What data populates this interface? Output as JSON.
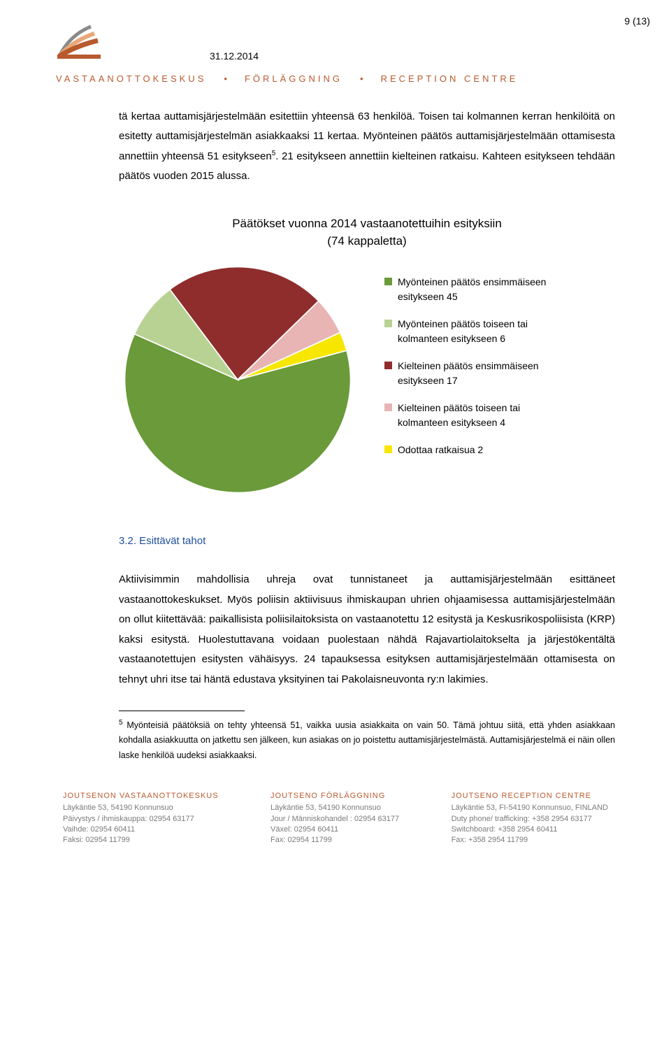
{
  "page_number": "9 (13)",
  "date": "31.12.2014",
  "org_bar": {
    "a": "VASTAANOTTOKESKUS",
    "b": "FÖRLÄGGNING",
    "c": "RECEPTION CENTRE"
  },
  "logo": {
    "colors": [
      "#b85a2e",
      "#e8a878",
      "#8a8a8a"
    ]
  },
  "paragraph1_a": "tä kertaa auttamisjärjestelmään esitettiin yhteensä 63 henkilöä. Toisen tai kolmannen kerran henkilöitä on esitetty auttamisjärjestelmän asiakkaaksi 11 kertaa. Myönteinen päätös auttamisjärjestelmään ottamisesta annettiin yhteensä 51 esitykseen",
  "paragraph1_b": ". 21 esitykseen annettiin kielteinen ratkaisu. Kahteen esitykseen tehdään päätös vuoden 2015 alussa.",
  "paragraph1_ref": "5",
  "pie_chart": {
    "title_line1": "Päätökset vuonna 2014 vastaanotettuihin esityksiin",
    "title_line2": "(74 kappaletta)",
    "slices": [
      {
        "label": "Myönteinen päätös ensimmäiseen esitykseen 45",
        "value": 45,
        "color": "#6a9a3a"
      },
      {
        "label": "Myönteinen päätös toiseen tai kolmanteen esitykseen  6",
        "value": 6,
        "color": "#b8d294"
      },
      {
        "label": "Kielteinen päätös ensimmäiseen esitykseen 17",
        "value": 17,
        "color": "#8f2d2d"
      },
      {
        "label": "Kielteinen päätös toiseen tai kolmanteen esitykseen 4",
        "value": 4,
        "color": "#e8b4b4"
      },
      {
        "label": "Odottaa ratkaisua  2",
        "value": 2,
        "color": "#f7e600"
      }
    ],
    "background_color": "#ffffff",
    "rotation_deg": 75
  },
  "section_heading": "3.2. Esittävät tahot",
  "paragraph2": "Aktiivisimmin mahdollisia uhreja ovat tunnistaneet ja auttamisjärjestelmään esittäneet vastaanottokeskukset. Myös poliisin aktiivisuus ihmiskaupan uhrien ohjaamisessa auttamisjärjestelmään on ollut kiitettävää: paikallisista poliisilaitoksista on vastaanotettu 12 esitystä ja Keskusrikospoliisista (KRP) kaksi esitystä. Huolestuttavana voidaan puolestaan nähdä Rajavartiolaitokselta ja järjestökentältä vastaanotettujen esitysten vähäisyys. 24 tapauksessa esityksen auttamisjärjestelmään ottamisesta on tehnyt uhri itse tai häntä edustava yksityinen tai Pakolaisneuvonta ry:n lakimies.",
  "footnote_ref": "5",
  "footnote_text": " Myönteisiä päätöksiä on tehty yhteensä 51, vaikka uusia asiakkaita on vain 50. Tämä johtuu siitä, että yhden asiakkaan kohdalla asiakkuutta on jatkettu sen jälkeen, kun asiakas on jo poistettu auttamisjärjestelmästä. Auttamisjärjestelmä ei näin ollen laske henkilöä uudeksi asiakkaaksi.",
  "footer": {
    "col1": {
      "title": "JOUTSENON VASTAANOTTOKESKUS",
      "lines": [
        "Läykäntie 53, 54190 Konnunsuo",
        "Päivystys / ihmiskauppa: 02954 63177",
        "Vaihde: 02954 60411",
        "Faksi: 02954 11799"
      ]
    },
    "col2": {
      "title": "JOUTSENO FÖRLÄGGNING",
      "lines": [
        "Läykäntie 53, 54190 Konnunsuo",
        "Jour / Människohandel : 02954 63177",
        "Växel: 02954 60411",
        "Fax: 02954 11799"
      ]
    },
    "col3": {
      "title": "JOUTSENO RECEPTION CENTRE",
      "lines": [
        "Läykäntie 53, FI-54190 Konnunsuo, FINLAND",
        "Duty phone/ trafficking: +358 2954 63177",
        "Switchboard: +358 2954 60411",
        "Fax: +358 2954 11799"
      ]
    }
  }
}
